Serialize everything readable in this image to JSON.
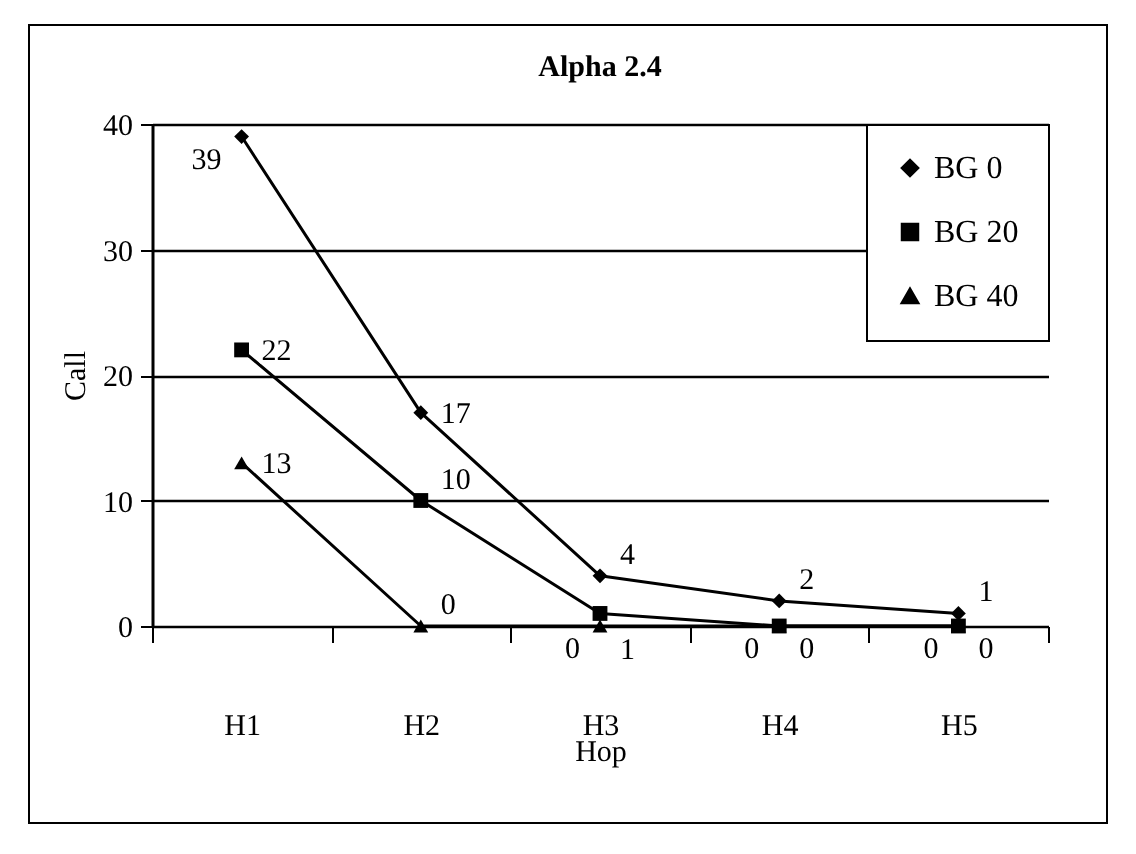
{
  "chart_data": {
    "type": "line",
    "title": "Alpha 2.4",
    "xlabel": "Hop",
    "ylabel": "Call",
    "categories": [
      "H1",
      "H2",
      "H3",
      "H4",
      "H5"
    ],
    "series": [
      {
        "name": "BG 0",
        "color": "#000000",
        "marker": "diamond",
        "values": [
          39,
          17,
          4,
          2,
          1
        ]
      },
      {
        "name": "BG 20",
        "color": "#000000",
        "marker": "square",
        "values": [
          22,
          10,
          1,
          0,
          0
        ]
      },
      {
        "name": "BG 40",
        "color": "#000000",
        "marker": "triangle",
        "values": [
          13,
          0,
          0,
          0,
          0
        ]
      }
    ],
    "ylim": [
      0,
      40
    ],
    "yticks": [
      0,
      10,
      20,
      30,
      40
    ],
    "grid": "y",
    "legend": "top right",
    "data_labels": true
  }
}
